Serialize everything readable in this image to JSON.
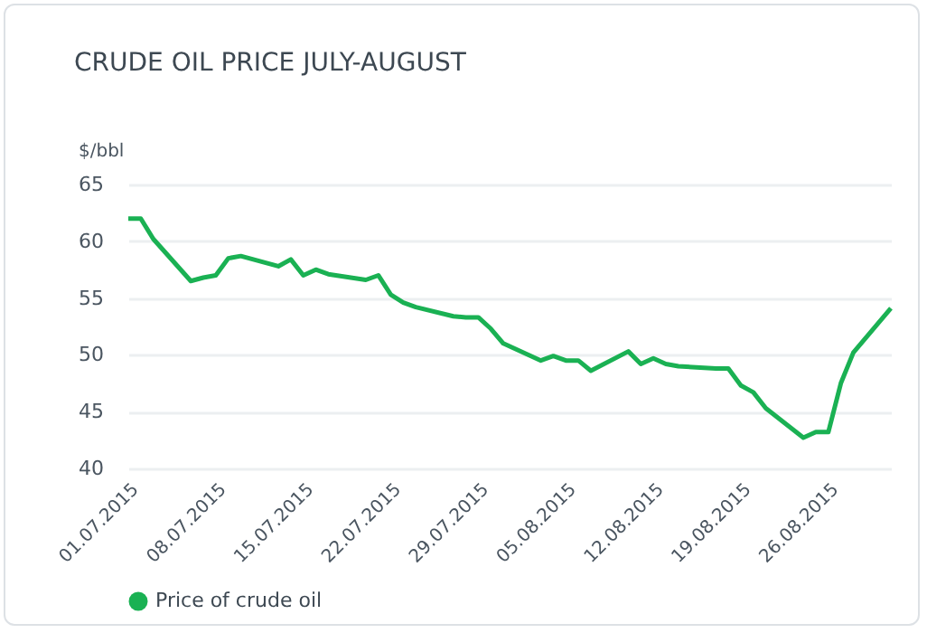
{
  "chart_data": {
    "type": "line",
    "title": "CRUDE OIL PRICE JULY-AUGUST",
    "ylabel": "$/bbl",
    "x": [
      "2015-07-01",
      "2015-07-02",
      "2015-07-03",
      "2015-07-06",
      "2015-07-07",
      "2015-07-08",
      "2015-07-09",
      "2015-07-10",
      "2015-07-13",
      "2015-07-14",
      "2015-07-15",
      "2015-07-16",
      "2015-07-17",
      "2015-07-20",
      "2015-07-21",
      "2015-07-22",
      "2015-07-23",
      "2015-07-24",
      "2015-07-27",
      "2015-07-28",
      "2015-07-29",
      "2015-07-30",
      "2015-07-31",
      "2015-08-03",
      "2015-08-04",
      "2015-08-05",
      "2015-08-06",
      "2015-08-07",
      "2015-08-10",
      "2015-08-11",
      "2015-08-12",
      "2015-08-13",
      "2015-08-14",
      "2015-08-17",
      "2015-08-18",
      "2015-08-19",
      "2015-08-20",
      "2015-08-21",
      "2015-08-24",
      "2015-08-25",
      "2015-08-26",
      "2015-08-27",
      "2015-08-28",
      "2015-08-31"
    ],
    "series": [
      {
        "name": "Price of crude oil",
        "color": "#1ab153",
        "values": [
          62.0,
          62.0,
          60.2,
          56.5,
          56.8,
          57.0,
          58.5,
          58.7,
          57.8,
          58.4,
          57.0,
          57.5,
          57.1,
          56.6,
          57.0,
          55.3,
          54.6,
          54.2,
          53.4,
          53.3,
          53.3,
          52.3,
          51.0,
          49.5,
          49.9,
          49.5,
          49.5,
          48.6,
          50.3,
          49.2,
          49.7,
          49.2,
          49.0,
          48.8,
          48.8,
          47.3,
          46.7,
          45.3,
          42.7,
          43.2,
          43.2,
          47.5,
          50.2,
          54.1
        ]
      }
    ],
    "xlim": [
      "2015-07-01",
      "2015-08-31"
    ],
    "xticks": [
      {
        "value": "2015-07-01",
        "label": "01.07.2015"
      },
      {
        "value": "2015-07-08",
        "label": "08.07.2015"
      },
      {
        "value": "2015-07-15",
        "label": "15.07.2015"
      },
      {
        "value": "2015-07-22",
        "label": "22.07.2015"
      },
      {
        "value": "2015-07-29",
        "label": "29.07.2015"
      },
      {
        "value": "2015-08-05",
        "label": "05.08.2015"
      },
      {
        "value": "2015-08-12",
        "label": "12.08.2015"
      },
      {
        "value": "2015-08-19",
        "label": "19.08.2015"
      },
      {
        "value": "2015-08-26",
        "label": "26.08.2015"
      }
    ],
    "ylim": [
      40,
      65
    ],
    "yticks": [
      40,
      45,
      50,
      55,
      60,
      65
    ],
    "grid": "y",
    "legend": "bottom",
    "marker": "none",
    "line_style": "solid"
  }
}
